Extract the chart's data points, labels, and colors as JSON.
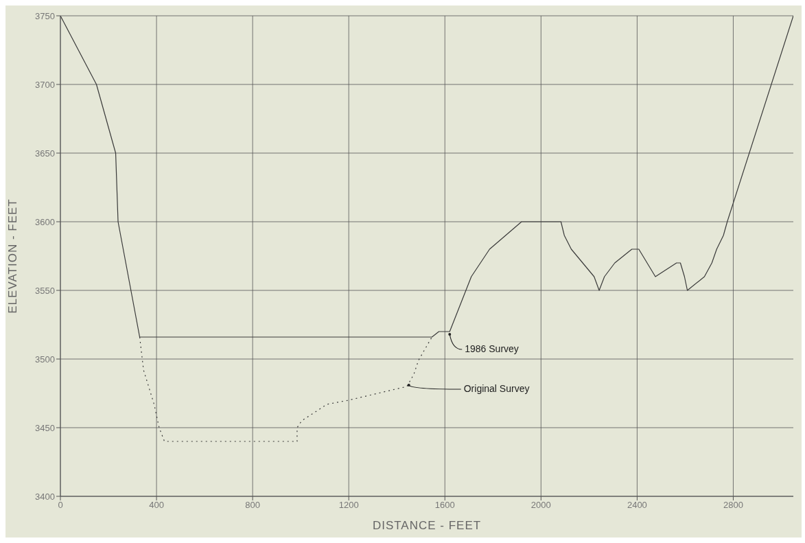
{
  "chart_data": {
    "type": "line",
    "xlabel": "DISTANCE - FEET",
    "ylabel": "ELEVATION - FEET",
    "xlim": [
      0,
      3050
    ],
    "xticks": [
      0,
      400,
      800,
      1200,
      1600,
      2000,
      2400,
      2800
    ],
    "ylim": [
      3400,
      3750
    ],
    "yticks": [
      3400,
      3450,
      3500,
      3550,
      3600,
      3650,
      3700,
      3750
    ],
    "grid": true,
    "series": [
      {
        "color": "#3a3a3a",
        "line_style": "solid",
        "x": [
          0,
          150,
          230,
          240,
          330,
          1546,
          1575,
          1620,
          1710,
          1786,
          1919,
          2083,
          2097,
          2126,
          2221,
          2242,
          2264,
          2307,
          2378,
          2407,
          2476,
          2564,
          2580,
          2597,
          2609,
          2680,
          2711,
          2731,
          2759,
          2775,
          3050
        ],
        "values": [
          3750,
          3700,
          3650,
          3600,
          3516,
          3516,
          3520,
          3520,
          3560,
          3580,
          3600,
          3600,
          3590,
          3580,
          3560,
          3550,
          3560,
          3570,
          3580,
          3580,
          3560,
          3570,
          3570,
          3560,
          3550,
          3560,
          3570,
          3580,
          3590,
          3600,
          3750
        ]
      },
      {
        "color": "#3a3a3a",
        "line_style": "dotted",
        "x": [
          330,
          346,
          390,
          411,
          433,
          985,
          985,
          1004,
          1109,
          1199,
          1442,
          1471,
          1490,
          1546
        ],
        "values": [
          3516,
          3492,
          3467,
          3450,
          3440,
          3440,
          3450,
          3455,
          3467,
          3470,
          3480,
          3489,
          3499,
          3516
        ]
      }
    ],
    "annotations": [
      {
        "text": "1986 Survey",
        "x": 1620,
        "y": 3518
      },
      {
        "text": "Original Survey",
        "x": 1450,
        "y": 3481
      }
    ]
  }
}
